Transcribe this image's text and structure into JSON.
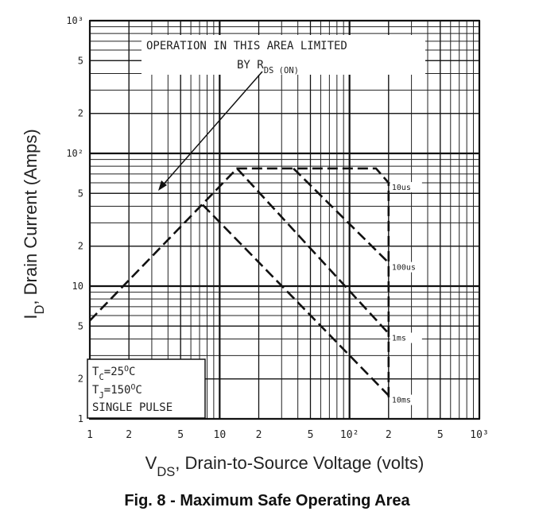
{
  "chart_data": {
    "type": "line",
    "title": "Fig. 8 - Maximum Safe Operating Area",
    "x_label": [
      {
        "text": "V"
      },
      {
        "text": "DS",
        "shift": "sub"
      },
      {
        "text": ", Drain-to-Source Voltage (volts)"
      }
    ],
    "y_label": [
      {
        "text": "I"
      },
      {
        "text": "D",
        "shift": "sub"
      },
      {
        "text": ", Drain Current (Amps)"
      }
    ],
    "x_scale": "log",
    "y_scale": "log",
    "grid": true,
    "minor_grid": true,
    "xlim": [
      1,
      1000
    ],
    "ylim": [
      1,
      1000
    ],
    "xticks": [
      1,
      2,
      5,
      10,
      {
        "value": 20,
        "label": "2"
      },
      {
        "value": 50,
        "label": "5"
      },
      {
        "value": 100,
        "label": "10²"
      },
      {
        "value": 200,
        "label": "2"
      },
      {
        "value": 500,
        "label": "5"
      },
      {
        "value": 1000,
        "label": "10³"
      }
    ],
    "yticks": [
      1,
      2,
      5,
      10,
      {
        "value": 20,
        "label": "2"
      },
      {
        "value": 50,
        "label": "5"
      },
      {
        "value": 100,
        "label": "10²"
      },
      {
        "value": 200,
        "label": "2"
      },
      {
        "value": 500,
        "label": "5"
      },
      {
        "value": 1000,
        "label": "10³"
      }
    ],
    "series": [
      {
        "name": "10us",
        "color": "#111111",
        "x": [
          1,
          13.6,
          160,
          200,
          200
        ],
        "values": [
          5.5,
          77,
          77,
          60,
          1.45
        ]
      },
      {
        "name": "100us",
        "color": "#111111",
        "x": [
          37,
          200
        ],
        "values": [
          77,
          15
        ]
      },
      {
        "name": "1ms",
        "color": "#111111",
        "x": [
          13.6,
          200
        ],
        "values": [
          77,
          4.4
        ]
      },
      {
        "name": "10ms",
        "color": "#111111",
        "x": [
          7.4,
          200
        ],
        "values": [
          41,
          1.5
        ]
      }
    ],
    "annotations": [
      {
        "lines": [
          [
            {
              "text": "OPERATION IN THIS AREA LIMITED"
            }
          ],
          [
            {
              "text": "BY R"
            },
            {
              "text": "DS (ON)",
              "shift": "sub"
            }
          ]
        ]
      },
      {
        "lines": [
          [
            {
              "text": "T"
            },
            {
              "text": "C",
              "shift": "sub"
            },
            {
              "text": "=25"
            },
            {
              "text": "O",
              "shift": "sup"
            },
            {
              "text": "C"
            }
          ],
          [
            {
              "text": "T"
            },
            {
              "text": "J",
              "shift": "sub"
            },
            {
              "text": "=150"
            },
            {
              "text": "O",
              "shift": "sup"
            },
            {
              "text": "C"
            }
          ],
          [
            {
              "text": "SINGLE PULSE"
            }
          ]
        ]
      }
    ]
  }
}
